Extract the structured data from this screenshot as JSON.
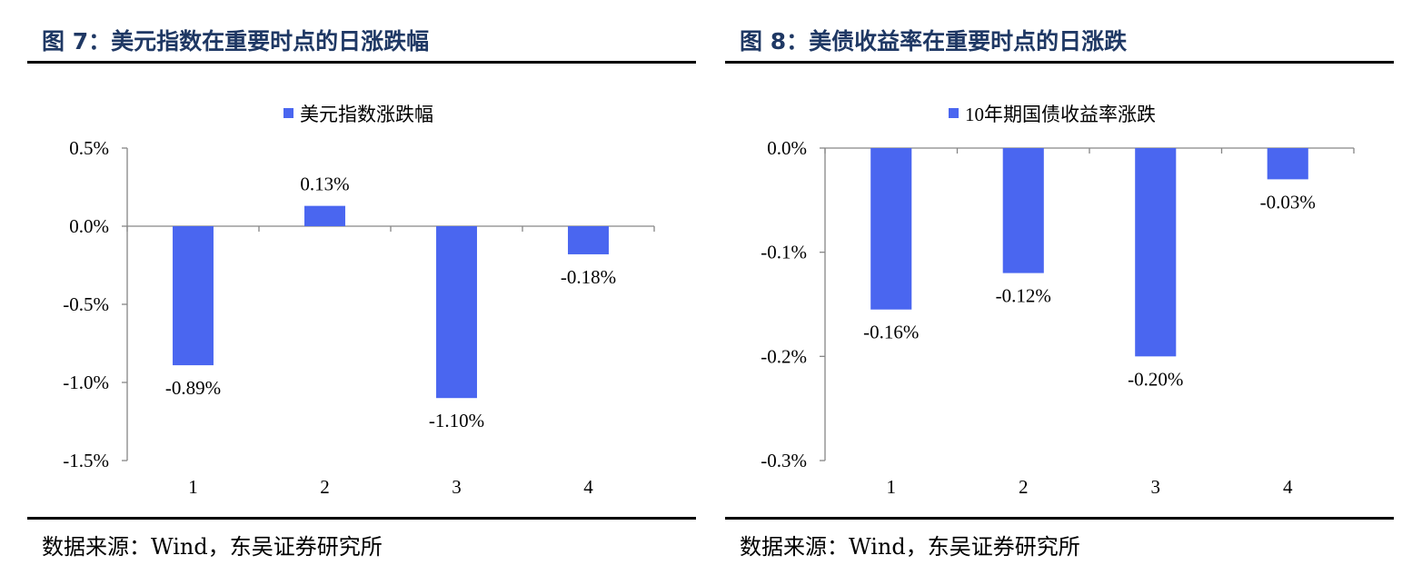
{
  "bar_color": "#4a66f0",
  "figures": [
    {
      "title": "图 7：美元指数在重要时点的日涨跌幅",
      "source": "数据来源：Wind，东吴证券研究所"
    },
    {
      "title": "图 8：美债收益率在重要时点的日涨跌",
      "source": "数据来源：Wind，东吴证券研究所"
    }
  ],
  "chart_data": [
    {
      "type": "bar",
      "categories": [
        "1",
        "2",
        "3",
        "4"
      ],
      "series": [
        {
          "name": "美元指数涨跌幅",
          "values": [
            -0.89,
            0.13,
            -1.1,
            -0.18
          ]
        }
      ],
      "data_labels": [
        "-0.89%",
        "0.13%",
        "-1.10%",
        "-0.18%"
      ],
      "yticks": [
        0.5,
        0.0,
        -0.5,
        -1.0,
        -1.5
      ],
      "ytick_labels": [
        "0.5%",
        "0.0%",
        "-0.5%",
        "-1.0%",
        "-1.5%"
      ],
      "ylim": [
        -1.5,
        0.5
      ],
      "legend_position": "top",
      "grid": false
    },
    {
      "type": "bar",
      "categories": [
        "1",
        "2",
        "3",
        "4"
      ],
      "series": [
        {
          "name": "10年期国债收益率涨跌",
          "values": [
            -0.155,
            -0.12,
            -0.2,
            -0.03
          ]
        }
      ],
      "data_labels": [
        "-0.16%",
        "-0.12%",
        "-0.20%",
        "-0.03%"
      ],
      "yticks": [
        0.0,
        -0.1,
        -0.2,
        -0.3
      ],
      "ytick_labels": [
        "0.0%",
        "-0.1%",
        "-0.2%",
        "-0.3%"
      ],
      "ylim": [
        -0.3,
        0.0
      ],
      "legend_position": "top",
      "grid": false
    }
  ]
}
